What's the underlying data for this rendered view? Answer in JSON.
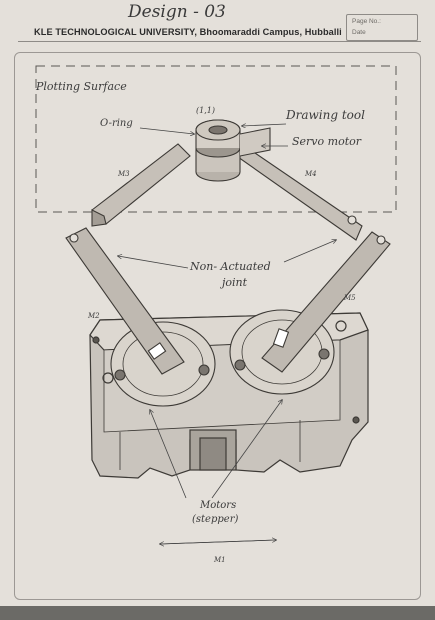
{
  "header": {
    "design_title": "Design - 03",
    "university": "KLE TECHNOLOGICAL UNIVERSITY, Bhoomaraddi Campus, Hubballi",
    "page_no_label": "Page No.:",
    "date_label": "Date"
  },
  "labels": {
    "plotting_surface": "Plotting Surface",
    "o_ring": "O-ring",
    "coord": "(1,1)",
    "drawing_tool": "Drawing tool",
    "servo_motor": "Servo motor",
    "m3": "M3",
    "m4": "M4",
    "non_actuated_joint_line1": "Non- Actuated",
    "non_actuated_joint_line2": "joint",
    "m2": "M2",
    "m5": "M5",
    "motors_line1": "Motors",
    "motors_line2": "(stepper)",
    "m1": "M1"
  }
}
